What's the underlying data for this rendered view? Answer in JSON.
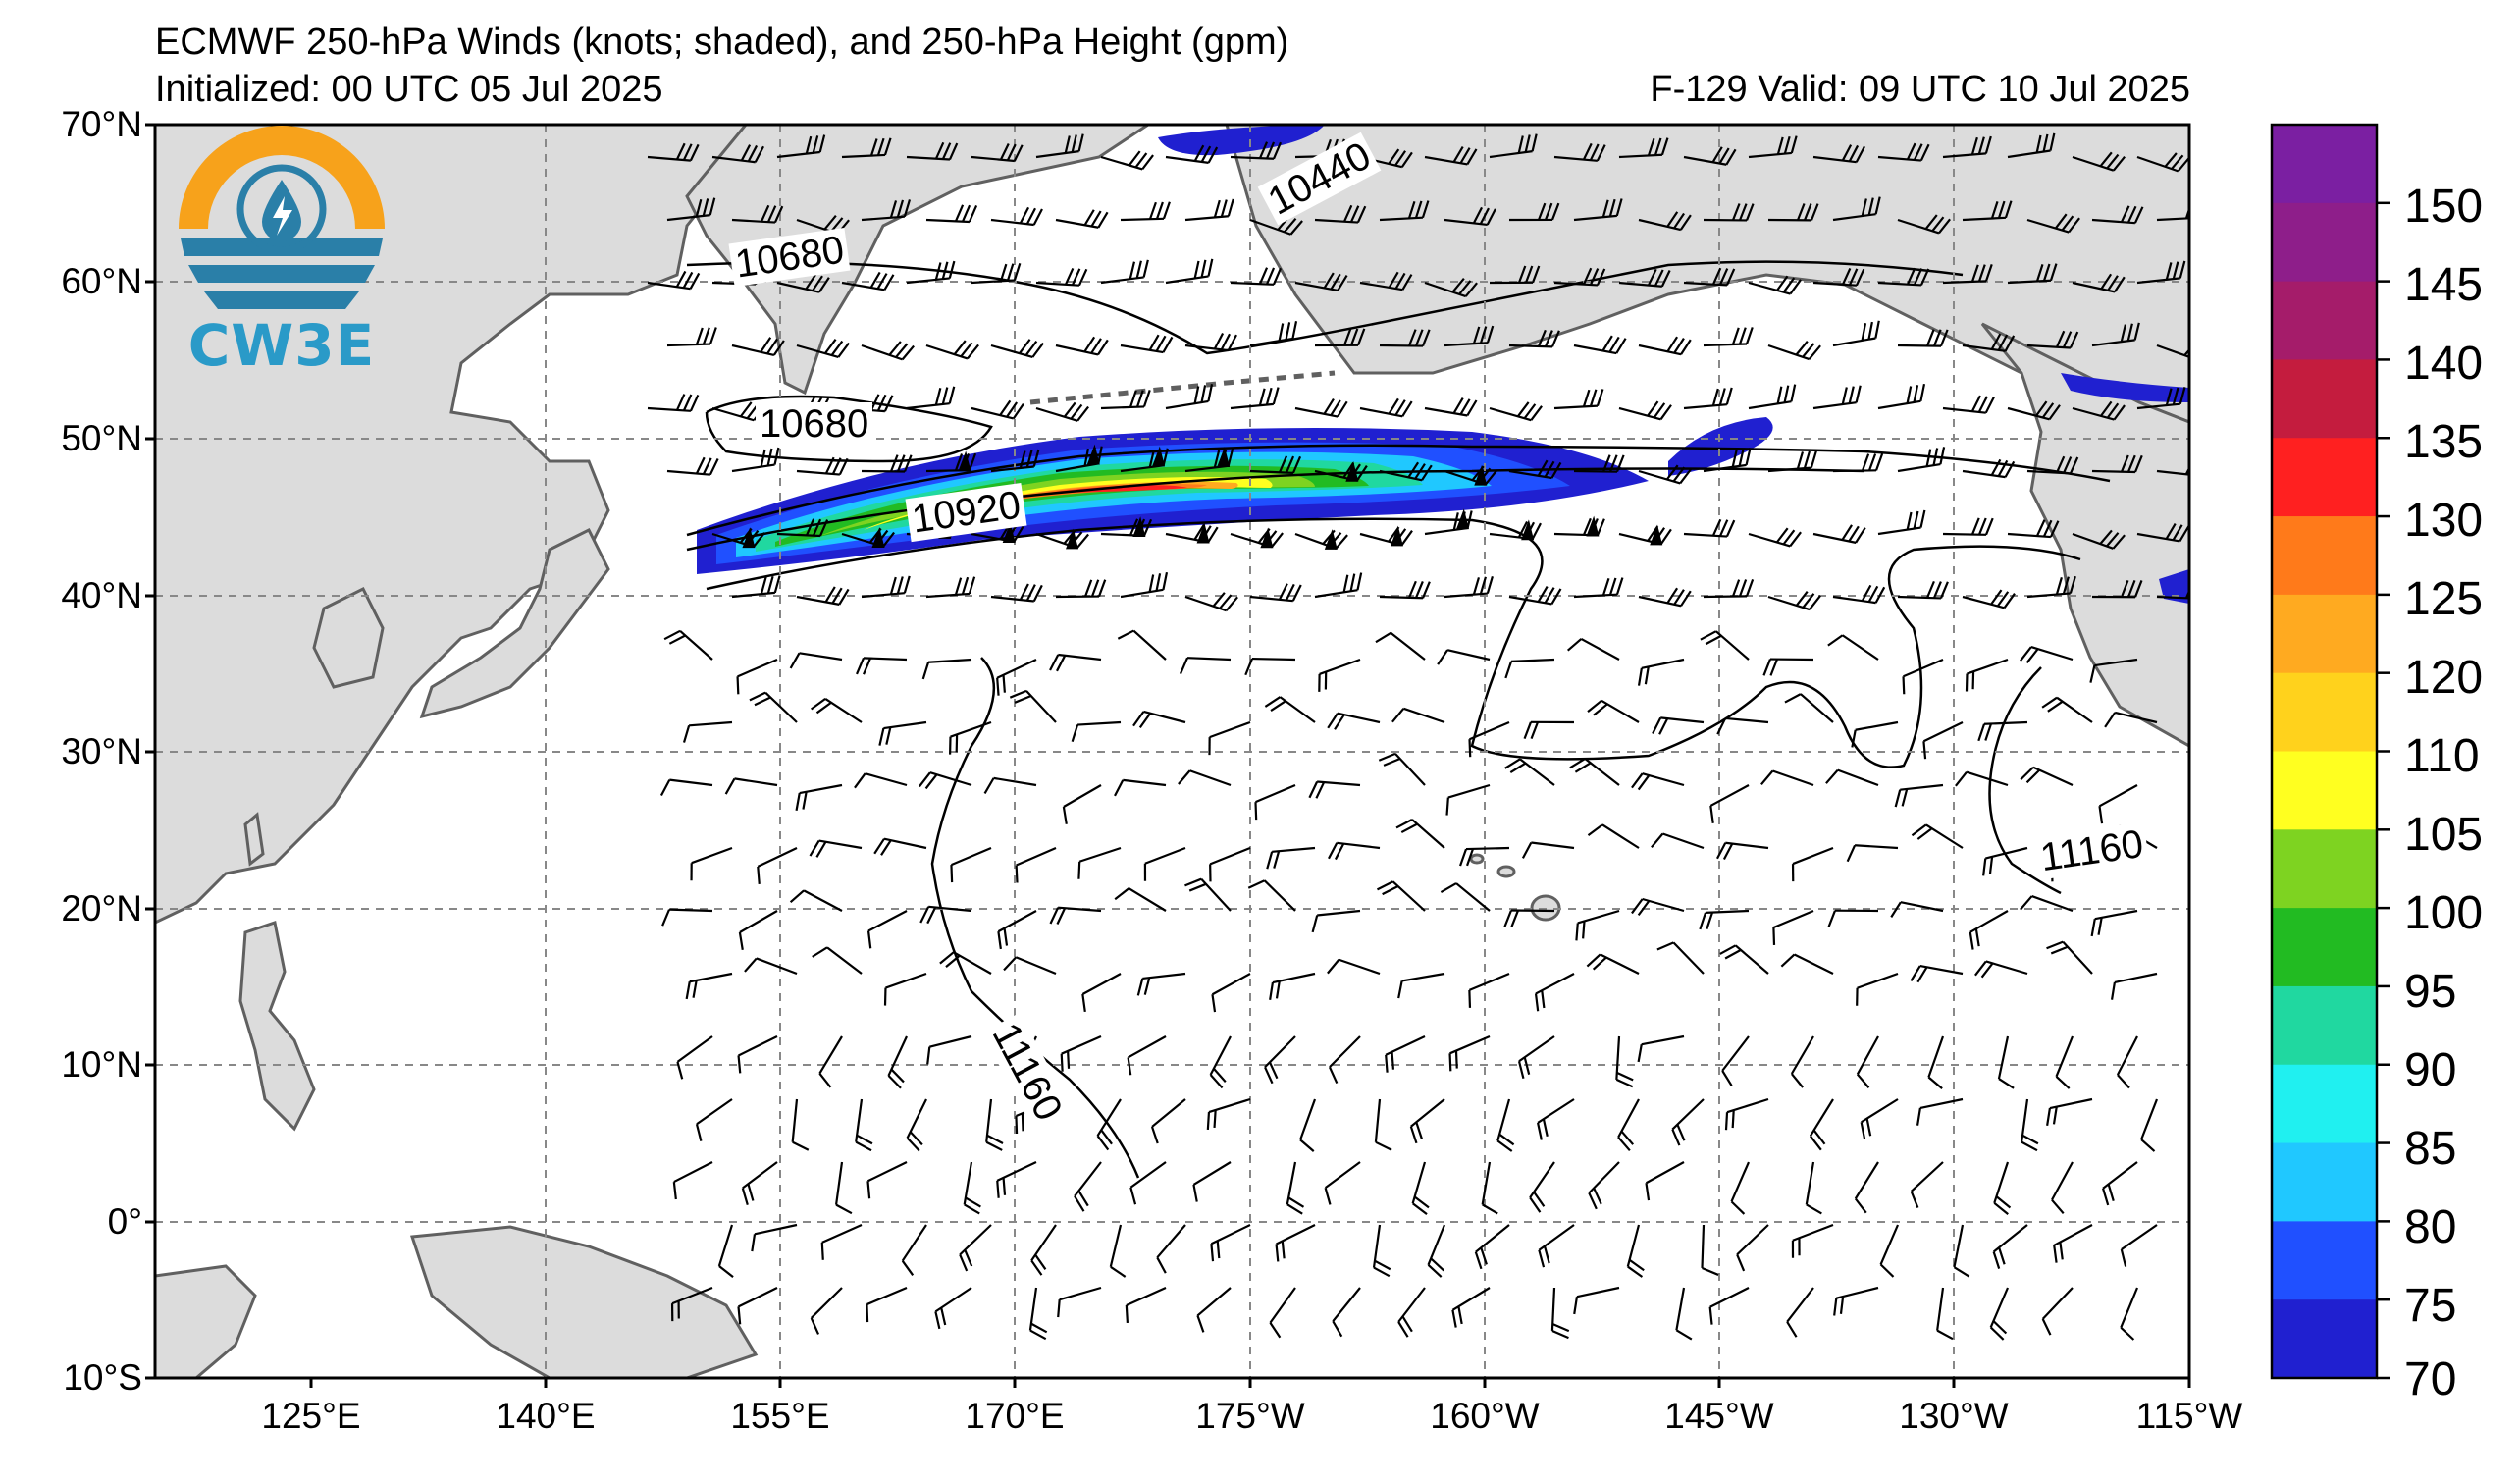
{
  "header": {
    "title": "ECMWF 250-hPa Winds (knots; shaded), and 250-hPa Height (gpm)",
    "initialized": "Initialized: 00 UTC 05 Jul 2025",
    "valid": "F-129  Valid: 09 UTC 10 Jul 2025"
  },
  "logo": {
    "text": "CW3E",
    "icon": "cw3e-logo-icon"
  },
  "axes": {
    "lat_labels": [
      "70°N",
      "60°N",
      "50°N",
      "40°N",
      "30°N",
      "20°N",
      "10°N",
      "0°",
      "10°S"
    ],
    "lon_labels": [
      "125°E",
      "140°E",
      "155°E",
      "170°E",
      "175°W",
      "160°W",
      "145°W",
      "130°W",
      "115°W"
    ]
  },
  "contours": {
    "labels": [
      "10680",
      "10440",
      "10680",
      "10920",
      "11160",
      "11160"
    ],
    "interval_gpm": 240
  },
  "colorbar": {
    "ticks": [
      "150",
      "145",
      "140",
      "135",
      "130",
      "125",
      "120",
      "110",
      "105",
      "100",
      "95",
      "90",
      "85",
      "80",
      "75",
      "70"
    ],
    "colors": [
      "#7b1fa2",
      "#8e1e8a",
      "#a51c6a",
      "#c41c3e",
      "#ff2020",
      "#ff7a1a",
      "#ffaa20",
      "#ffd21c",
      "#ffff20",
      "#7ed321",
      "#22bb22",
      "#20d8a0",
      "#20f0f0",
      "#20c8ff",
      "#2050ff",
      "#2020d0"
    ]
  },
  "colors": {
    "land": "#dcdcdc",
    "coast": "#606060",
    "grid": "#888888"
  }
}
